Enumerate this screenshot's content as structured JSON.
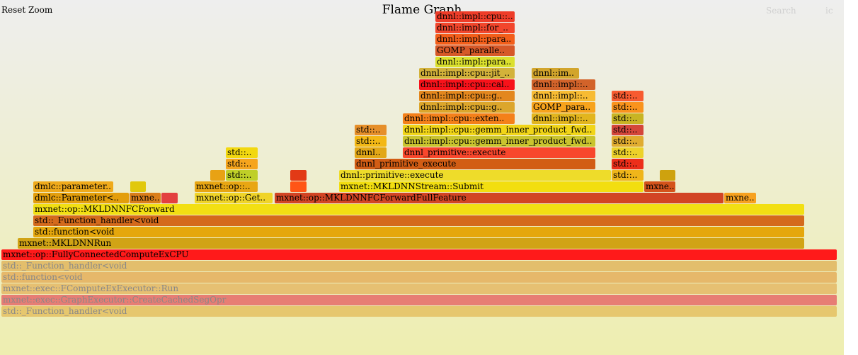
{
  "controls": {
    "reset_zoom": "Reset Zoom",
    "title": "Flame Graph",
    "search": "Search",
    "ic": "ic"
  },
  "chart_data": {
    "type": "flamegraph",
    "frames": [
      {
        "label": "std::_Function_handler<void",
        "depth": 0,
        "start": 2,
        "end": 1182,
        "color": "#e6c76e",
        "dim": true
      },
      {
        "label": "mxnet::exec::GraphExecutor::CreateCachedSegOpr",
        "depth": 1,
        "start": 2,
        "end": 1182,
        "color": "#e77d74",
        "dim": true
      },
      {
        "label": "mxnet::exec::FComputeExExecutor::Run",
        "depth": 2,
        "start": 2,
        "end": 1182,
        "color": "#e6c072",
        "dim": true
      },
      {
        "label": "std::function<void",
        "depth": 3,
        "start": 2,
        "end": 1182,
        "color": "#e6b86a",
        "dim": true
      },
      {
        "label": "std::_Function_handler<void",
        "depth": 4,
        "start": 2,
        "end": 1182,
        "color": "#e3be6c",
        "dim": true
      },
      {
        "label": "mxnet::op::FullyConnectedComputeExCPU",
        "depth": 5,
        "start": 2,
        "end": 1182,
        "color": "#ff1a1a"
      },
      {
        "label": "mxnet::MKLDNNRun",
        "depth": 6,
        "start": 25,
        "end": 1136,
        "color": "#d1a315"
      },
      {
        "label": "std::function<void",
        "depth": 7,
        "start": 47,
        "end": 1136,
        "color": "#e5a70c"
      },
      {
        "label": "std::_Function_handler<void",
        "depth": 8,
        "start": 47,
        "end": 1136,
        "color": "#d46a1c"
      },
      {
        "label": "mxnet::op::MKLDNNFCForward",
        "depth": 9,
        "start": 47,
        "end": 1136,
        "color": "#f2df13"
      },
      {
        "label": "dmlc::Parameter<..",
        "depth": 10,
        "start": 47,
        "end": 182,
        "color": "#e39e0c"
      },
      {
        "label": "mxne..",
        "depth": 10,
        "start": 183,
        "end": 227,
        "color": "#da7e1a"
      },
      {
        "label": "",
        "depth": 10,
        "start": 228,
        "end": 251,
        "color": "#e34040"
      },
      {
        "label": "mxnet::op::Get..",
        "depth": 10,
        "start": 275,
        "end": 385,
        "color": "#f0d428"
      },
      {
        "label": "mxnet::op::MKLDNNFCForwardFullFeature",
        "depth": 10,
        "start": 388,
        "end": 1022,
        "color": "#d24424"
      },
      {
        "label": "mxne..",
        "depth": 10,
        "start": 1023,
        "end": 1068,
        "color": "#f7a11f"
      },
      {
        "label": "dmlc::parameter..",
        "depth": 11,
        "start": 47,
        "end": 160,
        "color": "#efaa1b"
      },
      {
        "label": "",
        "depth": 11,
        "start": 184,
        "end": 206,
        "color": "#e1c80c"
      },
      {
        "label": "mxnet::op::..",
        "depth": 11,
        "start": 275,
        "end": 364,
        "color": "#e8a613"
      },
      {
        "label": "",
        "depth": 11,
        "start": 410,
        "end": 433,
        "color": "#ff5516"
      },
      {
        "label": "mxnet::MKLDNNStream::Submit",
        "depth": 11,
        "start": 479,
        "end": 909,
        "color": "#f2de10"
      },
      {
        "label": "mxne..",
        "depth": 11,
        "start": 910,
        "end": 954,
        "color": "#d4531b"
      },
      {
        "label": "",
        "depth": 12,
        "start": 297,
        "end": 318,
        "color": "#e8a214"
      },
      {
        "label": "std::..",
        "depth": 12,
        "start": 319,
        "end": 364,
        "color": "#bfcf28"
      },
      {
        "label": "",
        "depth": 12,
        "start": 410,
        "end": 433,
        "color": "#e23a16"
      },
      {
        "label": "dnnl::primitive::execute",
        "depth": 12,
        "start": 479,
        "end": 863,
        "color": "#eedc2a"
      },
      {
        "label": "std::..",
        "depth": 12,
        "start": 864,
        "end": 909,
        "color": "#efb51a"
      },
      {
        "label": "",
        "depth": 12,
        "start": 932,
        "end": 954,
        "color": "#cea20e"
      },
      {
        "label": "std::..",
        "depth": 13,
        "start": 319,
        "end": 364,
        "color": "#f6a51d"
      },
      {
        "label": "dnnl_primitive_execute",
        "depth": 13,
        "start": 501,
        "end": 841,
        "color": "#d25d14"
      },
      {
        "label": "std::..",
        "depth": 13,
        "start": 864,
        "end": 909,
        "color": "#ec2e1a"
      },
      {
        "label": "std::..",
        "depth": 14,
        "start": 319,
        "end": 364,
        "color": "#f2d810"
      },
      {
        "label": "dnnl..",
        "depth": 14,
        "start": 501,
        "end": 546,
        "color": "#e2a717"
      },
      {
        "label": "dnnl_primitive::execute",
        "depth": 14,
        "start": 569,
        "end": 841,
        "color": "#f8472c"
      },
      {
        "label": "std::..",
        "depth": 14,
        "start": 864,
        "end": 909,
        "color": "#edd22a"
      },
      {
        "label": "std::..",
        "depth": 15,
        "start": 501,
        "end": 546,
        "color": "#f3b816"
      },
      {
        "label": "dnnl::impl::cpu::gemm_inner_product_fwd..",
        "depth": 15,
        "start": 569,
        "end": 841,
        "color": "#c9c42e"
      },
      {
        "label": "std::..",
        "depth": 15,
        "start": 864,
        "end": 909,
        "color": "#e0ac30"
      },
      {
        "label": "std::..",
        "depth": 16,
        "start": 501,
        "end": 546,
        "color": "#e68f2a"
      },
      {
        "label": "dnnl::impl::cpu::gemm_inner_product_fwd..",
        "depth": 16,
        "start": 569,
        "end": 841,
        "color": "#f1d518"
      },
      {
        "label": "std::..",
        "depth": 16,
        "start": 864,
        "end": 909,
        "color": "#d4463a"
      },
      {
        "label": "dnnl::impl::cpu::exten..",
        "depth": 17,
        "start": 569,
        "end": 727,
        "color": "#f4801a"
      },
      {
        "label": "dnnl::impl::..",
        "depth": 17,
        "start": 751,
        "end": 841,
        "color": "#e2b51e"
      },
      {
        "label": "std::..",
        "depth": 17,
        "start": 864,
        "end": 909,
        "color": "#c8b424"
      },
      {
        "label": "dnnl::impl::cpu::g..",
        "depth": 18,
        "start": 592,
        "end": 727,
        "color": "#dca62c"
      },
      {
        "label": "GOMP_para..",
        "depth": 18,
        "start": 751,
        "end": 841,
        "color": "#f7a31c"
      },
      {
        "label": "std::..",
        "depth": 18,
        "start": 864,
        "end": 909,
        "color": "#f9931d"
      },
      {
        "label": "dnnl::impl::cpu::g..",
        "depth": 19,
        "start": 592,
        "end": 727,
        "color": "#e3871e"
      },
      {
        "label": "dnnl::impl::..",
        "depth": 19,
        "start": 751,
        "end": 841,
        "color": "#f7bb33"
      },
      {
        "label": "std::..",
        "depth": 19,
        "start": 864,
        "end": 909,
        "color": "#f75b30"
      },
      {
        "label": "dnnl::impl::cpu::cal..",
        "depth": 20,
        "start": 592,
        "end": 727,
        "color": "#f7121a"
      },
      {
        "label": "dnnl::impl::..",
        "depth": 20,
        "start": 751,
        "end": 841,
        "color": "#d2632a"
      },
      {
        "label": "dnnl::impl::cpu::jit_..",
        "depth": 21,
        "start": 592,
        "end": 727,
        "color": "#d3b23a"
      },
      {
        "label": "dnnl::im..",
        "depth": 21,
        "start": 751,
        "end": 818,
        "color": "#d2a52c"
      },
      {
        "label": "dnnl::impl::para..",
        "depth": 22,
        "start": 615,
        "end": 727,
        "color": "#dbe02e"
      },
      {
        "label": "GOMP_paralle..",
        "depth": 23,
        "start": 615,
        "end": 727,
        "color": "#d65828"
      },
      {
        "label": "dnnl::impl::para..",
        "depth": 24,
        "start": 615,
        "end": 727,
        "color": "#f35e1a"
      },
      {
        "label": "dnnl::impl::for_..",
        "depth": 25,
        "start": 615,
        "end": 727,
        "color": "#f2462c"
      },
      {
        "label": "dnnl::impl::cpu::..",
        "depth": 26,
        "start": 615,
        "end": 727,
        "color": "#ee3c28"
      }
    ]
  }
}
